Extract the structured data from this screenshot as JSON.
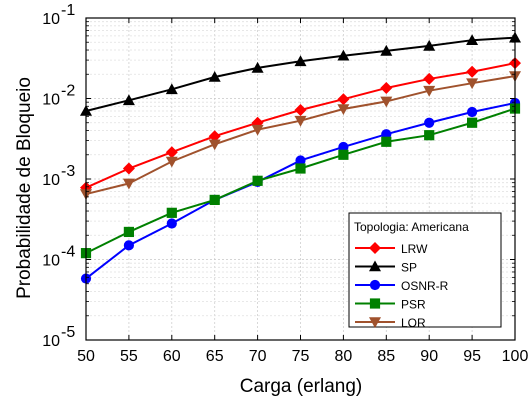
{
  "chart_data": {
    "type": "line",
    "xlabel": "Carga (erlang)",
    "ylabel": "Probabilidade de Bloqueio",
    "y_scale": "log",
    "xlim": [
      50,
      100
    ],
    "ylim": [
      1e-05,
      0.1
    ],
    "x_ticks": [
      "50",
      "55",
      "60",
      "65",
      "70",
      "75",
      "80",
      "85",
      "90",
      "95",
      "100"
    ],
    "y_ticks": [
      {
        "base": "10",
        "exp": "-5"
      },
      {
        "base": "10",
        "exp": "-4"
      },
      {
        "base": "10",
        "exp": "-3"
      },
      {
        "base": "10",
        "exp": "-2"
      },
      {
        "base": "10",
        "exp": "-1"
      }
    ],
    "legend_title": "Topologia: Americana",
    "legend_position": "bottom-right",
    "grid": true,
    "x": [
      50,
      55,
      60,
      65,
      70,
      75,
      80,
      85,
      90,
      95,
      100
    ],
    "series": [
      {
        "name": "LRW",
        "color": "#ff0000",
        "marker": "diamond",
        "values": [
          0.00078,
          0.00135,
          0.00215,
          0.0034,
          0.005,
          0.0072,
          0.0098,
          0.0135,
          0.0175,
          0.0215,
          0.0275
        ]
      },
      {
        "name": "SP",
        "color": "#000000",
        "marker": "triangle-up",
        "values": [
          0.007,
          0.0095,
          0.013,
          0.0185,
          0.024,
          0.029,
          0.034,
          0.039,
          0.045,
          0.053,
          0.057
        ]
      },
      {
        "name": "OSNR-R",
        "color": "#0000ff",
        "marker": "circle",
        "values": [
          5.8e-05,
          0.00015,
          0.00028,
          0.00055,
          0.00092,
          0.0017,
          0.0025,
          0.0036,
          0.005,
          0.0068,
          0.0088
        ]
      },
      {
        "name": "PSR",
        "color": "#008000",
        "marker": "square",
        "values": [
          0.00012,
          0.00022,
          0.00038,
          0.00055,
          0.00095,
          0.00135,
          0.002,
          0.0029,
          0.0035,
          0.005,
          0.0075
        ]
      },
      {
        "name": "LOR",
        "color": "#a0522d",
        "marker": "triangle-down",
        "values": [
          0.00065,
          0.00088,
          0.00165,
          0.0027,
          0.0041,
          0.0053,
          0.0074,
          0.0092,
          0.0125,
          0.0155,
          0.019
        ]
      }
    ]
  }
}
